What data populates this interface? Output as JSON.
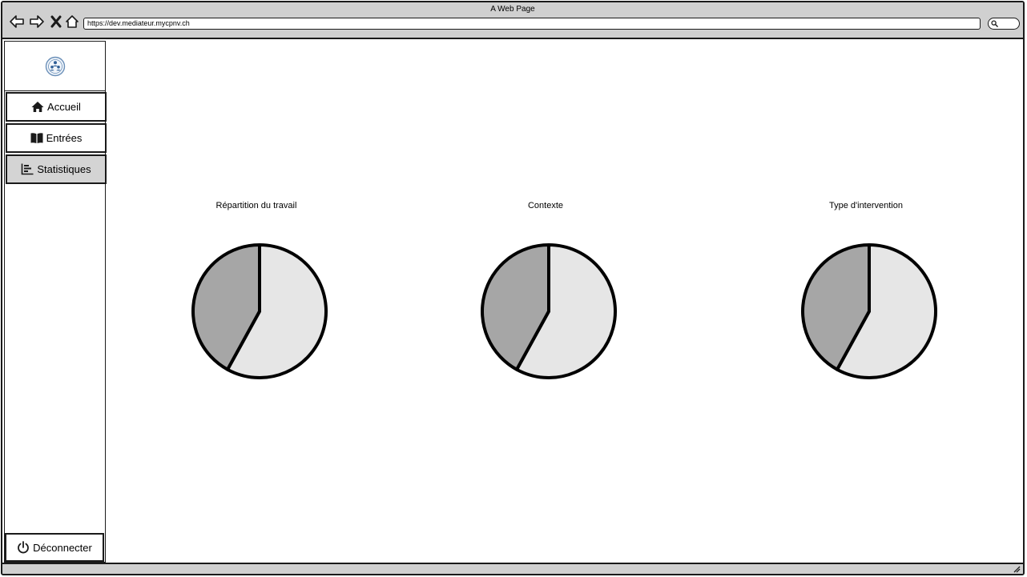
{
  "window": {
    "title": "A Web Page",
    "url": "https://dev.mediateur.mycpnv.ch"
  },
  "sidebar": {
    "logo": "app-logo",
    "items": [
      {
        "label": "Accueil",
        "icon": "home-icon",
        "active": false
      },
      {
        "label": "Entrées",
        "icon": "book-icon",
        "active": false
      },
      {
        "label": "Statistiques",
        "icon": "bar-chart-icon",
        "active": true
      }
    ],
    "logout_label": "Déconnecter"
  },
  "colors": {
    "slice_major": "#e6e6e6",
    "slice_minor": "#a6a6a6",
    "active_item": "#d4d4d4",
    "chrome": "#d0d0d0"
  },
  "chart_data": [
    {
      "type": "pie",
      "title": "Répartition du travail",
      "slices": [
        {
          "value": 58,
          "color": "#e6e6e6"
        },
        {
          "value": 42,
          "color": "#a6a6a6"
        }
      ]
    },
    {
      "type": "pie",
      "title": "Contexte",
      "slices": [
        {
          "value": 58,
          "color": "#e6e6e6"
        },
        {
          "value": 42,
          "color": "#a6a6a6"
        }
      ]
    },
    {
      "type": "pie",
      "title": "Type d'intervention",
      "slices": [
        {
          "value": 58,
          "color": "#e6e6e6"
        },
        {
          "value": 42,
          "color": "#a6a6a6"
        }
      ]
    }
  ]
}
